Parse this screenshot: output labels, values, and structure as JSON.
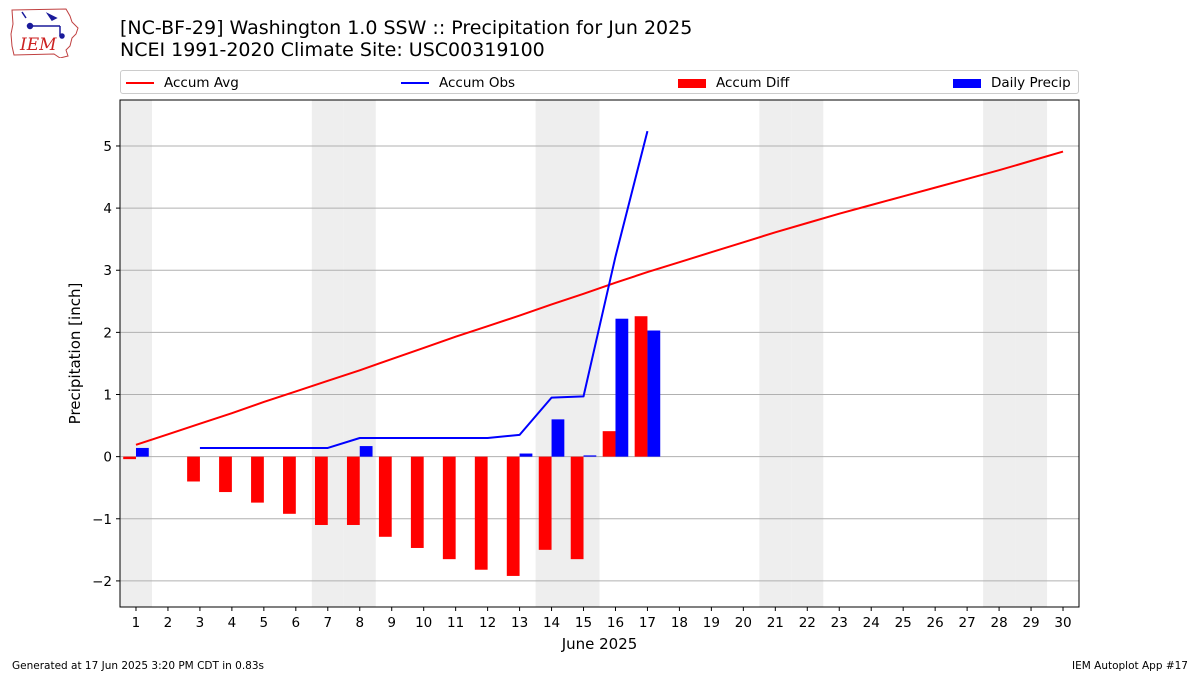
{
  "header": {
    "title_line1": "[NC-BF-29] Washington 1.0 SSW :: Precipitation for Jun 2025",
    "title_line2": "NCEI 1991-2020 Climate Site: USC00319100",
    "logo_text": "IEM"
  },
  "footer": {
    "generated": "Generated at 17 Jun 2025 3:20 PM CDT in 0.83s",
    "app": "IEM Autoplot App #17"
  },
  "colors": {
    "accum_avg": "#ff0000",
    "accum_obs": "#0000ff",
    "accum_diff": "#ff0000",
    "daily_precip": "#0000ff",
    "weekend_shade": "#eeeeee",
    "grid": "#b0b0b0"
  },
  "chart_data": {
    "type": "bar",
    "xlabel": "June 2025",
    "ylabel": "Precipitation [inch]",
    "ylim": [
      -2.42,
      5.74
    ],
    "xlim": [
      0.5,
      30.5
    ],
    "grid": "horizontal",
    "legend_placement": "top",
    "yticks": [
      -2,
      -1,
      0,
      1,
      2,
      3,
      4,
      5
    ],
    "ytick_labels": [
      "−2",
      "−1",
      "0",
      "1",
      "2",
      "3",
      "4",
      "5"
    ],
    "days": [
      1,
      2,
      3,
      4,
      5,
      6,
      7,
      8,
      9,
      10,
      11,
      12,
      13,
      14,
      15,
      16,
      17,
      18,
      19,
      20,
      21,
      22,
      23,
      24,
      25,
      26,
      27,
      28,
      29,
      30
    ],
    "day_labels": [
      "1",
      "2",
      "3",
      "4",
      "5",
      "6",
      "7",
      "8",
      "9",
      "10",
      "11",
      "12",
      "13",
      "14",
      "15",
      "16",
      "17",
      "18",
      "19",
      "20",
      "21",
      "22",
      "23",
      "24",
      "25",
      "26",
      "27",
      "28",
      "29",
      "30"
    ],
    "weekend_days": [
      1,
      7,
      8,
      14,
      15,
      21,
      22,
      28,
      29
    ],
    "series": [
      {
        "name": "Accum Avg",
        "kind": "line",
        "values": [
          0.19,
          0.36,
          0.53,
          0.7,
          0.88,
          1.05,
          1.22,
          1.39,
          1.57,
          1.75,
          1.93,
          2.1,
          2.27,
          2.45,
          2.62,
          2.8,
          2.97,
          3.13,
          3.29,
          3.45,
          3.61,
          3.76,
          3.91,
          4.05,
          4.19,
          4.33,
          4.47,
          4.61,
          4.76,
          4.91
        ]
      },
      {
        "name": "Accum Obs",
        "kind": "line",
        "values": [
          null,
          null,
          0.14,
          0.14,
          0.14,
          0.14,
          0.14,
          0.3,
          0.3,
          0.3,
          0.3,
          0.3,
          0.35,
          0.95,
          0.97,
          3.22,
          5.24
        ]
      },
      {
        "name": "Accum Diff",
        "kind": "bar",
        "values": [
          -0.04,
          0,
          -0.4,
          -0.57,
          -0.74,
          -0.92,
          -1.1,
          -1.1,
          -1.29,
          -1.47,
          -1.65,
          -1.82,
          -1.92,
          -1.5,
          -1.65,
          0.41,
          2.26
        ]
      },
      {
        "name": "Daily Precip",
        "kind": "bar",
        "values": [
          0.14,
          0,
          0,
          0,
          0,
          0,
          0,
          0.17,
          0,
          0,
          0,
          0,
          0.05,
          0.6,
          0.02,
          2.22,
          2.03
        ]
      }
    ]
  }
}
